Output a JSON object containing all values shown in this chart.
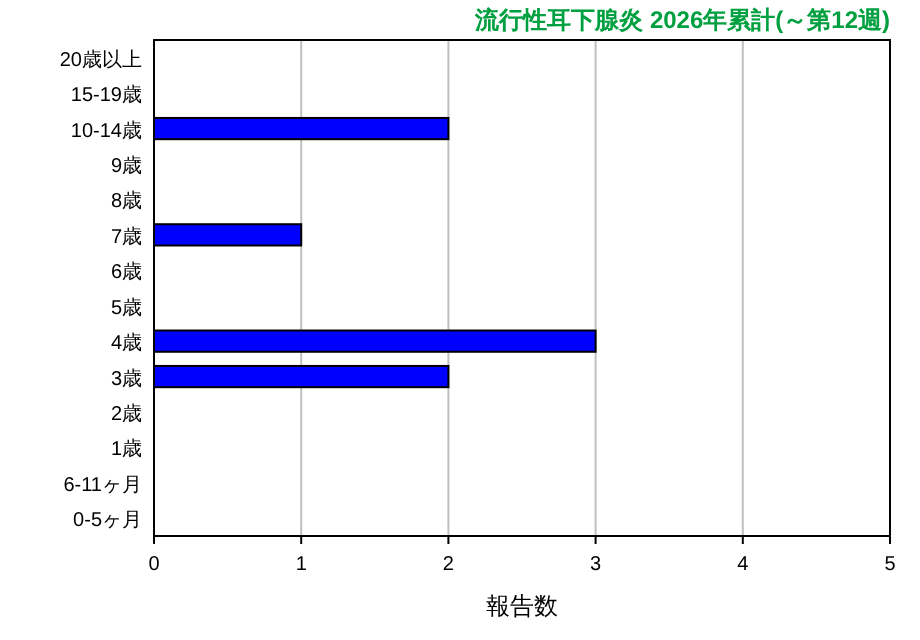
{
  "chart_data": {
    "type": "bar",
    "orientation": "horizontal",
    "title": "流行性耳下腺炎 2026年累計(～第12週)",
    "xlabel": "報告数",
    "categories": [
      "20歳以上",
      "15-19歳",
      "10-14歳",
      "9歳",
      "8歳",
      "7歳",
      "6歳",
      "5歳",
      "4歳",
      "3歳",
      "2歳",
      "1歳",
      "6-11ヶ月",
      "0-5ヶ月"
    ],
    "values": [
      0,
      0,
      2,
      0,
      0,
      1,
      0,
      0,
      3,
      2,
      0,
      0,
      0,
      0
    ],
    "color": "#0000ff",
    "xlim": [
      0,
      5
    ],
    "xticks": [
      0,
      1,
      2,
      3,
      4,
      5
    ],
    "grid": "x"
  }
}
